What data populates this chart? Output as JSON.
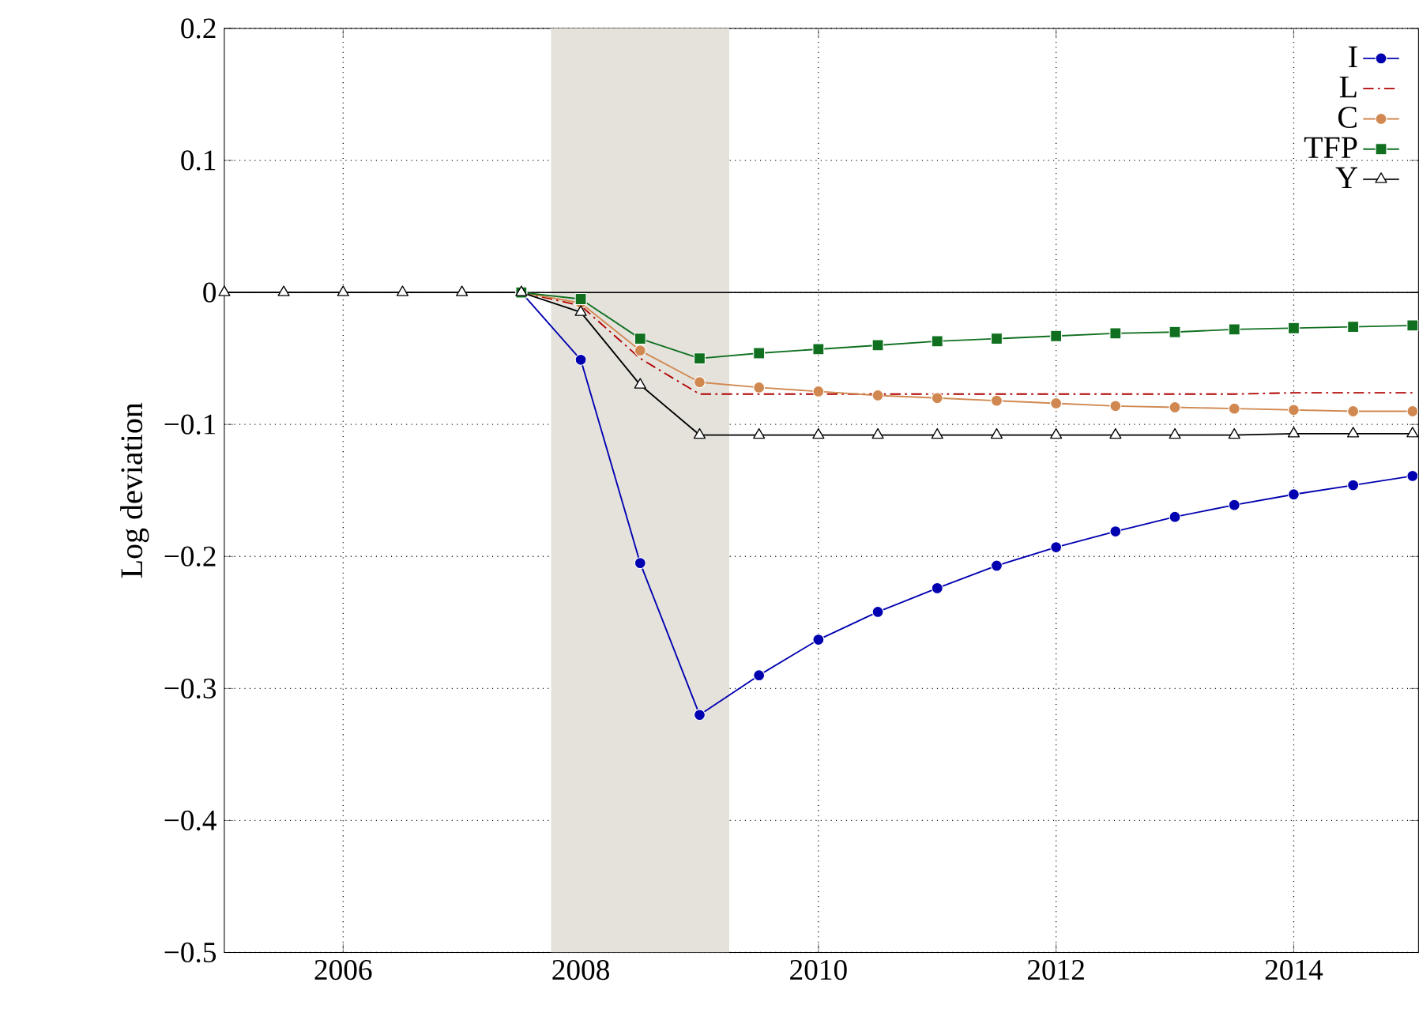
{
  "chart_data": {
    "type": "line",
    "ylabel": "Log deviation",
    "x": [
      2005,
      2005.5,
      2006,
      2006.5,
      2007,
      2007.5,
      2008,
      2008.5,
      2009,
      2009.5,
      2010,
      2010.5,
      2011,
      2011.5,
      2012,
      2012.5,
      2013,
      2013.5,
      2014,
      2014.5,
      2015
    ],
    "series": [
      {
        "name": "I",
        "color": "#0000b0",
        "marker": "circle",
        "values": [
          null,
          null,
          null,
          null,
          null,
          0,
          -0.051,
          -0.205,
          -0.32,
          -0.29,
          -0.263,
          -0.242,
          -0.224,
          -0.207,
          -0.193,
          -0.181,
          -0.17,
          -0.161,
          -0.153,
          -0.146,
          -0.139
        ]
      },
      {
        "name": "L",
        "color": "#b00000",
        "marker": "none",
        "line_style": "dashed",
        "values": [
          null,
          null,
          null,
          null,
          null,
          0,
          -0.01,
          -0.05,
          -0.077,
          -0.077,
          -0.077,
          -0.077,
          -0.077,
          -0.077,
          -0.077,
          -0.077,
          -0.077,
          -0.077,
          -0.076,
          -0.076,
          -0.076
        ]
      },
      {
        "name": "C",
        "color": "#d08850",
        "marker": "circle",
        "values": [
          null,
          null,
          null,
          null,
          null,
          0,
          -0.008,
          -0.044,
          -0.068,
          -0.072,
          -0.075,
          -0.078,
          -0.08,
          -0.082,
          -0.084,
          -0.086,
          -0.087,
          -0.088,
          -0.089,
          -0.09,
          -0.09
        ]
      },
      {
        "name": "TFP",
        "color": "#107020",
        "marker": "square",
        "values": [
          null,
          null,
          null,
          null,
          null,
          0,
          -0.005,
          -0.035,
          -0.05,
          -0.046,
          -0.043,
          -0.04,
          -0.037,
          -0.035,
          -0.033,
          -0.031,
          -0.03,
          -0.028,
          -0.027,
          -0.026,
          -0.025
        ]
      },
      {
        "name": "Y",
        "color": "#000000",
        "marker": "triangle",
        "values": [
          0,
          0,
          0,
          0,
          0,
          0,
          -0.015,
          -0.07,
          -0.108,
          -0.108,
          -0.108,
          -0.108,
          -0.108,
          -0.108,
          -0.108,
          -0.108,
          -0.108,
          -0.108,
          -0.107,
          -0.107,
          -0.107
        ]
      }
    ],
    "xlim": [
      2005,
      2015.05
    ],
    "ylim": [
      -0.5,
      0.2
    ],
    "xticks": [
      2006,
      2008,
      2010,
      2012,
      2014
    ],
    "yticks": [
      {
        "value": -0.5,
        "label": "−0.5"
      },
      {
        "value": -0.4,
        "label": "−0.4"
      },
      {
        "value": -0.3,
        "label": "−0.3"
      },
      {
        "value": -0.2,
        "label": "−0.2"
      },
      {
        "value": -0.1,
        "label": "−0.1"
      },
      {
        "value": 0,
        "label": "0"
      },
      {
        "value": 0.1,
        "label": "0.1"
      },
      {
        "value": 0.2,
        "label": "0.2"
      }
    ],
    "ref_lines": [
      {
        "axis": "y",
        "value": 0,
        "color": "#000000"
      }
    ],
    "bands": [
      {
        "axis": "x",
        "from": 2007.75,
        "to": 2009.25,
        "color": "#e5e2dc"
      }
    ],
    "grid": true,
    "legend": "top right",
    "line_style": "solid"
  }
}
